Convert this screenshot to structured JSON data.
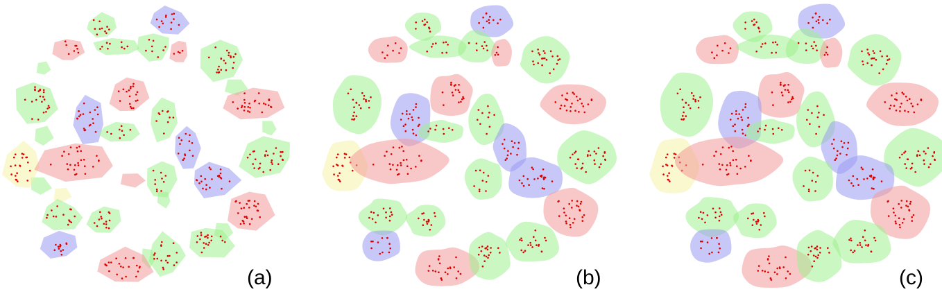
{
  "figure": {
    "panels": [
      {
        "id": "a",
        "label": "(a)",
        "style": "polygon"
      },
      {
        "id": "b",
        "label": "(b)",
        "style": "smooth"
      },
      {
        "id": "c",
        "label": "(c)",
        "style": "smooth-large"
      }
    ],
    "colors": {
      "green": "#9ef08f",
      "red": "#f29a9a",
      "blue": "#9a9af2",
      "yellow": "#f5f3a8",
      "dot": "#e00000"
    },
    "fill_opacity": 0.55,
    "cluster_colors_sequence": [
      "green",
      "blue",
      "red",
      "green",
      "red",
      "green",
      "green",
      "red",
      "green",
      "red",
      "green",
      "blue",
      "red",
      "green",
      "blue",
      "green",
      "green",
      "red",
      "green",
      "red",
      "green",
      "yellow",
      "green",
      "blue",
      "blue",
      "red",
      "green",
      "blue",
      "green"
    ]
  }
}
